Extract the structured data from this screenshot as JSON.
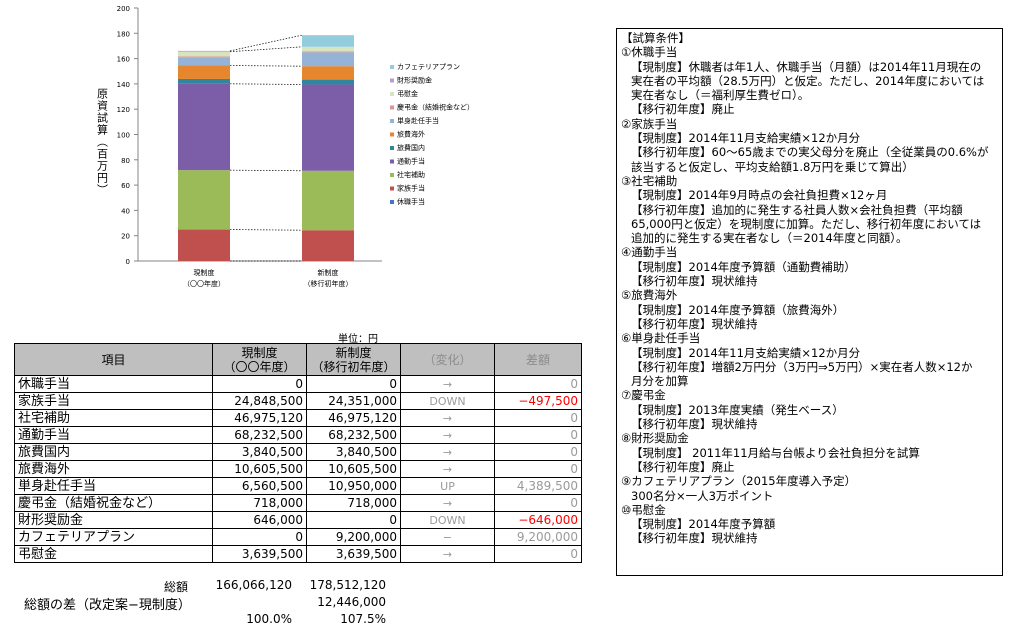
{
  "chart_data": {
    "type": "bar",
    "stacked": true,
    "categories": [
      [
        "現制度",
        "（〇〇年度）"
      ],
      [
        "新制度",
        "（移行初年度）"
      ]
    ],
    "ylabel": "原資試算（百万円）",
    "ylim": [
      0,
      200
    ],
    "yticks": [
      0,
      20,
      40,
      60,
      80,
      100,
      120,
      140,
      160,
      180,
      200
    ],
    "legend_position": "right",
    "series": [
      {
        "name": "休職手当",
        "values": [
          0,
          0
        ],
        "color": "#4472c4"
      },
      {
        "name": "家族手当",
        "values": [
          24.85,
          24.35
        ],
        "color": "#c0504d"
      },
      {
        "name": "社宅補助",
        "values": [
          46.98,
          46.98
        ],
        "color": "#9bbb59"
      },
      {
        "name": "通勤手当",
        "values": [
          68.23,
          68.23
        ],
        "color": "#7b5ea7"
      },
      {
        "name": "旅費国内",
        "values": [
          3.84,
          3.84
        ],
        "color": "#31859c"
      },
      {
        "name": "旅費海外",
        "values": [
          10.61,
          10.61
        ],
        "color": "#e6862e"
      },
      {
        "name": "単身赴任手当",
        "values": [
          6.56,
          10.95
        ],
        "color": "#95b3d7"
      },
      {
        "name": "慶弔金（結婚祝金など）",
        "values": [
          0.72,
          0.72
        ],
        "color": "#da9694"
      },
      {
        "name": "弔慰金",
        "values": [
          3.64,
          3.64
        ],
        "color": "#d7e4bd"
      },
      {
        "name": "財形奨励金",
        "values": [
          0.65,
          0
        ],
        "color": "#b3a2c7"
      },
      {
        "name": "カフェテリアプラン",
        "values": [
          0,
          9.2
        ],
        "color": "#93cddd"
      }
    ]
  },
  "table": {
    "unit": "単位：円",
    "headers": {
      "item": "項目",
      "current": [
        "現制度",
        "（〇〇年度）"
      ],
      "new": [
        "新制度",
        "（移行初年度）"
      ],
      "change": "（変化）",
      "diff": "差額"
    },
    "rows": [
      {
        "name": "休職手当",
        "current": "0",
        "new": "0",
        "change": "→",
        "diff": "0",
        "neg": false
      },
      {
        "name": "家族手当",
        "current": "24,848,500",
        "new": "24,351,000",
        "change": "DOWN",
        "diff": "−497,500",
        "neg": true
      },
      {
        "name": "社宅補助",
        "current": "46,975,120",
        "new": "46,975,120",
        "change": "→",
        "diff": "0",
        "neg": false
      },
      {
        "name": "通勤手当",
        "current": "68,232,500",
        "new": "68,232,500",
        "change": "→",
        "diff": "0",
        "neg": false
      },
      {
        "name": "旅費国内",
        "current": "3,840,500",
        "new": "3,840,500",
        "change": "→",
        "diff": "0",
        "neg": false
      },
      {
        "name": "旅費海外",
        "current": "10,605,500",
        "new": "10,605,500",
        "change": "→",
        "diff": "0",
        "neg": false
      },
      {
        "name": "単身赴任手当",
        "current": "6,560,500",
        "new": "10,950,000",
        "change": "UP",
        "diff": "4,389,500",
        "neg": false
      },
      {
        "name": "慶弔金（結婚祝金など）",
        "current": "718,000",
        "new": "718,000",
        "change": "→",
        "diff": "0",
        "neg": false
      },
      {
        "name": "財形奨励金",
        "current": "646,000",
        "new": "0",
        "change": "DOWN",
        "diff": "−646,000",
        "neg": true
      },
      {
        "name": "カフェテリアプラン",
        "current": "0",
        "new": "9,200,000",
        "change": "−",
        "diff": "9,200,000",
        "neg": false
      },
      {
        "name": "弔慰金",
        "current": "3,639,500",
        "new": "3,639,500",
        "change": "→",
        "diff": "0",
        "neg": false
      }
    ],
    "total_label": "総額",
    "total_current": "166,066,120",
    "total_new": "178,512,120",
    "difference_label": "総額の差（改定案−現制度）",
    "difference_value": "12,446,000",
    "ratio_current": "100.0%",
    "ratio_new": "107.5%"
  },
  "notes": {
    "title": "【試算条件】",
    "sections": [
      {
        "heading": "①休職手当",
        "lines": [
          "【現制度】休職者は年1人、休職手当（月額）は2014年11月現在の",
          "実在者の平均額（28.5万円）と仮定。ただし、2014年度においては",
          "実在者なし（＝福利厚生費ゼロ）。",
          "【移行初年度】廃止"
        ]
      },
      {
        "heading": "②家族手当",
        "lines": [
          "【現制度】2014年11月支給実績×12か月分",
          "【移行初年度】60〜65歳までの実父母分を廃止（全従業員の0.6%が",
          "該当すると仮定し、平均支給額1.8万円を乗じて算出）"
        ]
      },
      {
        "heading": "③社宅補助",
        "lines": [
          "【現制度】2014年9月時点の会社負担費×12ヶ月",
          "【移行初年度】追加的に発生する社員人数×会社負担費（平均額",
          "65,000円と仮定）を現制度に加算。ただし、移行初年度においては",
          "追加的に発生する実在者なし（＝2014年度と同額）。"
        ]
      },
      {
        "heading": "④通勤手当",
        "lines": [
          "【現制度】2014年度予算額（通勤費補助）",
          "【移行初年度】現状維持"
        ]
      },
      {
        "heading": "⑤旅費海外",
        "lines": [
          "【現制度】2014年度予算額（旅費海外）",
          "【移行初年度】現状維持"
        ]
      },
      {
        "heading": "⑥単身赴任手当",
        "lines": [
          "【現制度】2014年11月支給実績×12か月分",
          "【移行初年度】増額2万円分（3万円⇒5万円）×実在者人数×12か",
          "月分を加算"
        ]
      },
      {
        "heading": "⑦慶弔金",
        "lines": [
          "【現制度】2013年度実績（発生ベース）",
          "【移行初年度】現状維持"
        ]
      },
      {
        "heading": "⑧財形奨励金",
        "lines": [
          "【現制度】 2011年11月給与台帳より会社負担分を試算",
          "【移行初年度】廃止"
        ]
      },
      {
        "heading": "⑨カフェテリアプラン（2015年度導入予定）",
        "lines": [
          "300名分×一人3万ポイント"
        ]
      },
      {
        "heading": "⑩弔慰金",
        "lines": [
          "【現制度】2014年度予算額",
          "【移行初年度】現状維持"
        ]
      }
    ]
  }
}
